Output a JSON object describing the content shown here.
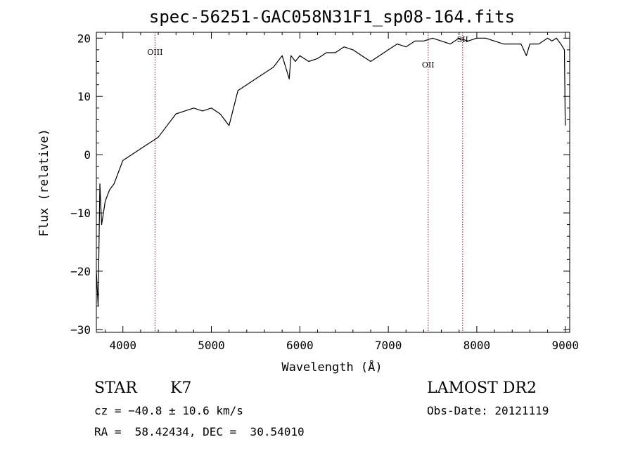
{
  "chart_data": {
    "type": "line",
    "title": "spec-56251-GAC058N31F1_sp08-164.fits",
    "xlabel": "Wavelength (Å)",
    "ylabel": "Flux (relative)",
    "xlim": [
      3700,
      9050
    ],
    "ylim": [
      -30.5,
      21
    ],
    "xticks": [
      4000,
      5000,
      6000,
      7000,
      8000,
      9000
    ],
    "yticks": [
      -30,
      -20,
      -10,
      0,
      10,
      20
    ],
    "xtick_labels": [
      "4000",
      "5000",
      "6000",
      "7000",
      "8000",
      "9000"
    ],
    "ytick_labels": [
      "−30",
      "−20",
      "−10",
      "0",
      "10",
      "20"
    ],
    "grid": false,
    "line_color": "#000000",
    "series": [
      {
        "x": [
          3700,
          3720,
          3740,
          3760,
          3780,
          3800,
          3850,
          3900,
          3950,
          4000,
          4100,
          4200,
          4300,
          4400,
          4500,
          4600,
          4700,
          4800,
          4900,
          5000,
          5100,
          5200,
          5300,
          5400,
          5500,
          5600,
          5700,
          5800,
          5880,
          5900,
          5950,
          6000,
          6100,
          6200,
          6300,
          6400,
          6500,
          6600,
          6700,
          6800,
          6900,
          7000,
          7100,
          7200,
          7300,
          7400,
          7500,
          7600,
          7700,
          7800,
          7900,
          8000,
          8100,
          8200,
          8300,
          8400,
          8500,
          8560,
          8600,
          8700,
          8800,
          8850,
          8900,
          8950,
          8990,
          9000
        ],
        "y": [
          -20,
          -26,
          -5,
          -12,
          -10,
          -8,
          -6,
          -5,
          -3,
          -1,
          0,
          1,
          2,
          3,
          5,
          7,
          7.5,
          8,
          7.5,
          8,
          7,
          5,
          11,
          12,
          13,
          14,
          15,
          17,
          13,
          17,
          16,
          17,
          16,
          16.5,
          17.5,
          17.5,
          18.5,
          18,
          17,
          16,
          17,
          18,
          19,
          18.5,
          19.5,
          19.5,
          20,
          19.5,
          19,
          20,
          19.5,
          20,
          20,
          19.5,
          19,
          19,
          19,
          17,
          19,
          19,
          20,
          19.5,
          20,
          19,
          18,
          5
        ]
      }
    ],
    "lines": [
      {
        "x": 4363,
        "label": "OIII"
      },
      {
        "x": 7450,
        "label": "OII"
      },
      {
        "x": 7840,
        "label": "SII"
      }
    ],
    "line_marker_color": "#8b1a1a"
  },
  "info": {
    "object_type": "STAR",
    "subclass": "K7",
    "survey": "LAMOST DR2",
    "cz": "cz = −40.8 ± 10.6 km/s",
    "obs_date": "Obs-Date: 20121119",
    "coords": "RA =  58.42434, DEC =  30.54010"
  }
}
